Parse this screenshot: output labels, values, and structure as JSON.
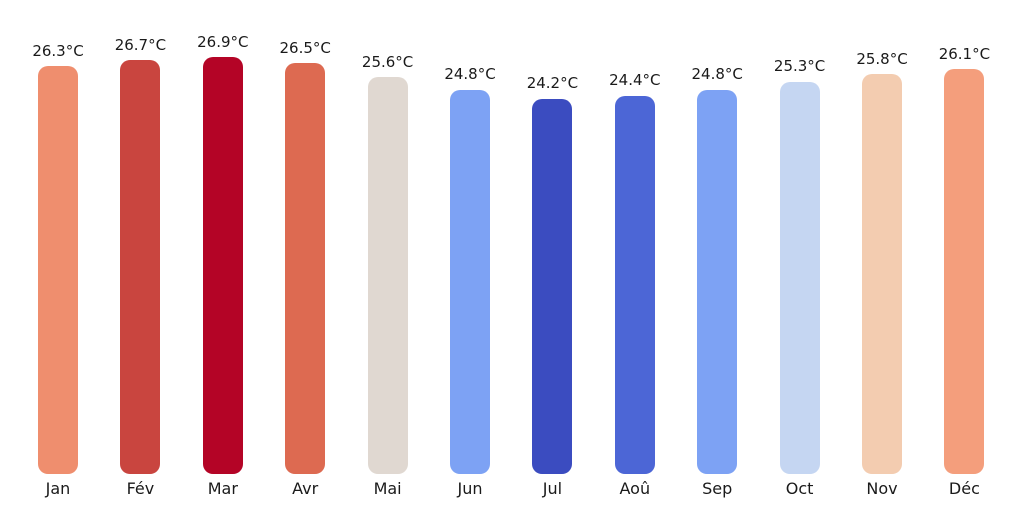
{
  "page": {
    "background": "#ffffff",
    "text_color": "#1a1a1a"
  },
  "chart_data": {
    "type": "bar",
    "title": "",
    "xlabel": "",
    "ylabel": "",
    "unit": "°C",
    "categories": [
      "Jan",
      "Fév",
      "Mar",
      "Avr",
      "Mai",
      "Jun",
      "Jul",
      "Aoû",
      "Sep",
      "Oct",
      "Nov",
      "Déc"
    ],
    "values": [
      26.3,
      26.7,
      26.9,
      26.5,
      25.6,
      24.8,
      24.2,
      24.4,
      24.8,
      25.3,
      25.8,
      26.1
    ],
    "value_labels": [
      "26.3°C",
      "26.7°C",
      "26.9°C",
      "26.5°C",
      "25.6°C",
      "24.8°C",
      "24.2°C",
      "24.4°C",
      "24.8°C",
      "25.3°C",
      "25.8°C",
      "26.1°C"
    ],
    "bar_colors": [
      "#ef8e6e",
      "#c9453f",
      "#b40426",
      "#dd6a51",
      "#e0d8d1",
      "#7da2f4",
      "#3b4cc0",
      "#4c66d6",
      "#7da2f4",
      "#c5d6f2",
      "#f3ccb0",
      "#f49e7c"
    ],
    "colormap": "coolwarm (bars colored by temperature, blue=cool to red=warm)",
    "ylim": [
      0,
      26.9
    ],
    "grid": false,
    "legend": false,
    "axes_visible": false,
    "bar_label_position": "above",
    "rounded_bar_caps": true
  }
}
